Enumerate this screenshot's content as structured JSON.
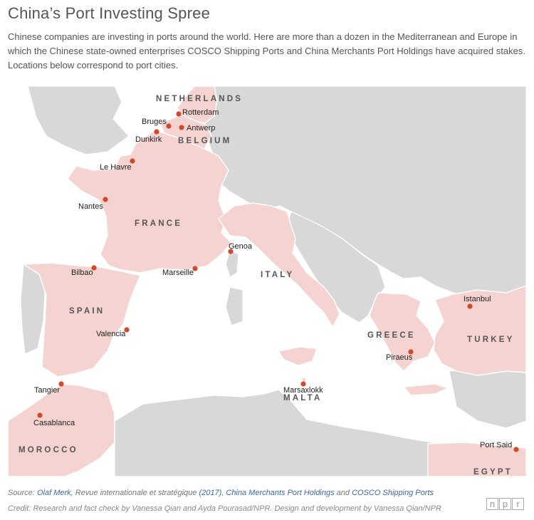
{
  "title": "China’s Port Investing Spree",
  "subtitle": "Chinese companies are investing in ports around the world. Here are more than a dozen in the Mediterranean and Europe in which the Chinese state-owned enterprises COSCO Shipping Ports and China Merchants Port Holdings have acquired stakes. Locations below correspond to port cities.",
  "colors": {
    "background": "#ffffff",
    "land": "#d8d8d8",
    "highlight": "#f5d3d0",
    "border": "#ffffff",
    "marker": "#d04a2a"
  },
  "countries": [
    {
      "key": "netherlands",
      "label": "NETHERLANDS"
    },
    {
      "key": "belgium",
      "label": "BELGIUM"
    },
    {
      "key": "france",
      "label": "FRANCE"
    },
    {
      "key": "italy",
      "label": "ITALY"
    },
    {
      "key": "spain",
      "label": "SPAIN"
    },
    {
      "key": "greece",
      "label": "GREECE"
    },
    {
      "key": "turkey",
      "label": "TURKEY"
    },
    {
      "key": "malta",
      "label": "MALTA"
    },
    {
      "key": "morocco",
      "label": "MOROCCO"
    },
    {
      "key": "egypt",
      "label": "EGYPT"
    }
  ],
  "ports": [
    {
      "key": "rotterdam",
      "name": "Rotterdam"
    },
    {
      "key": "bruges",
      "name": "Bruges"
    },
    {
      "key": "antwerp",
      "name": "Antwerp"
    },
    {
      "key": "dunkirk",
      "name": "Dunkirk"
    },
    {
      "key": "le-havre",
      "name": "Le Havre"
    },
    {
      "key": "nantes",
      "name": "Nantes"
    },
    {
      "key": "genoa",
      "name": "Genoa"
    },
    {
      "key": "bilbao",
      "name": "Bilbao"
    },
    {
      "key": "marseille",
      "name": "Marseille"
    },
    {
      "key": "istanbul",
      "name": "Istanbul"
    },
    {
      "key": "valencia",
      "name": "Valencia"
    },
    {
      "key": "piraeus",
      "name": "Piraeus"
    },
    {
      "key": "tangier",
      "name": "Tangier"
    },
    {
      "key": "marsaxlokk",
      "name": "Marsaxlokk"
    },
    {
      "key": "casablanca",
      "name": "Casablanca"
    },
    {
      "key": "port-said",
      "name": "Port Said"
    }
  ],
  "footer": {
    "source_prefix": "Source:",
    "source_1": "Olaf Merk",
    "source_2": ", Revue internationale et stratégique ",
    "source_3": "(2017)",
    "source_4": ",",
    "source_5": "China Merchants Port Holdings",
    "source_6": " and ",
    "source_7": "COSCO Shipping Ports",
    "credit": "Credit: Research and fact check by Vanessa Qian and Ayda Pourasad/NPR. Design and development by Vanessa Qian/NPR",
    "logo": [
      "n",
      "p",
      "r"
    ]
  }
}
